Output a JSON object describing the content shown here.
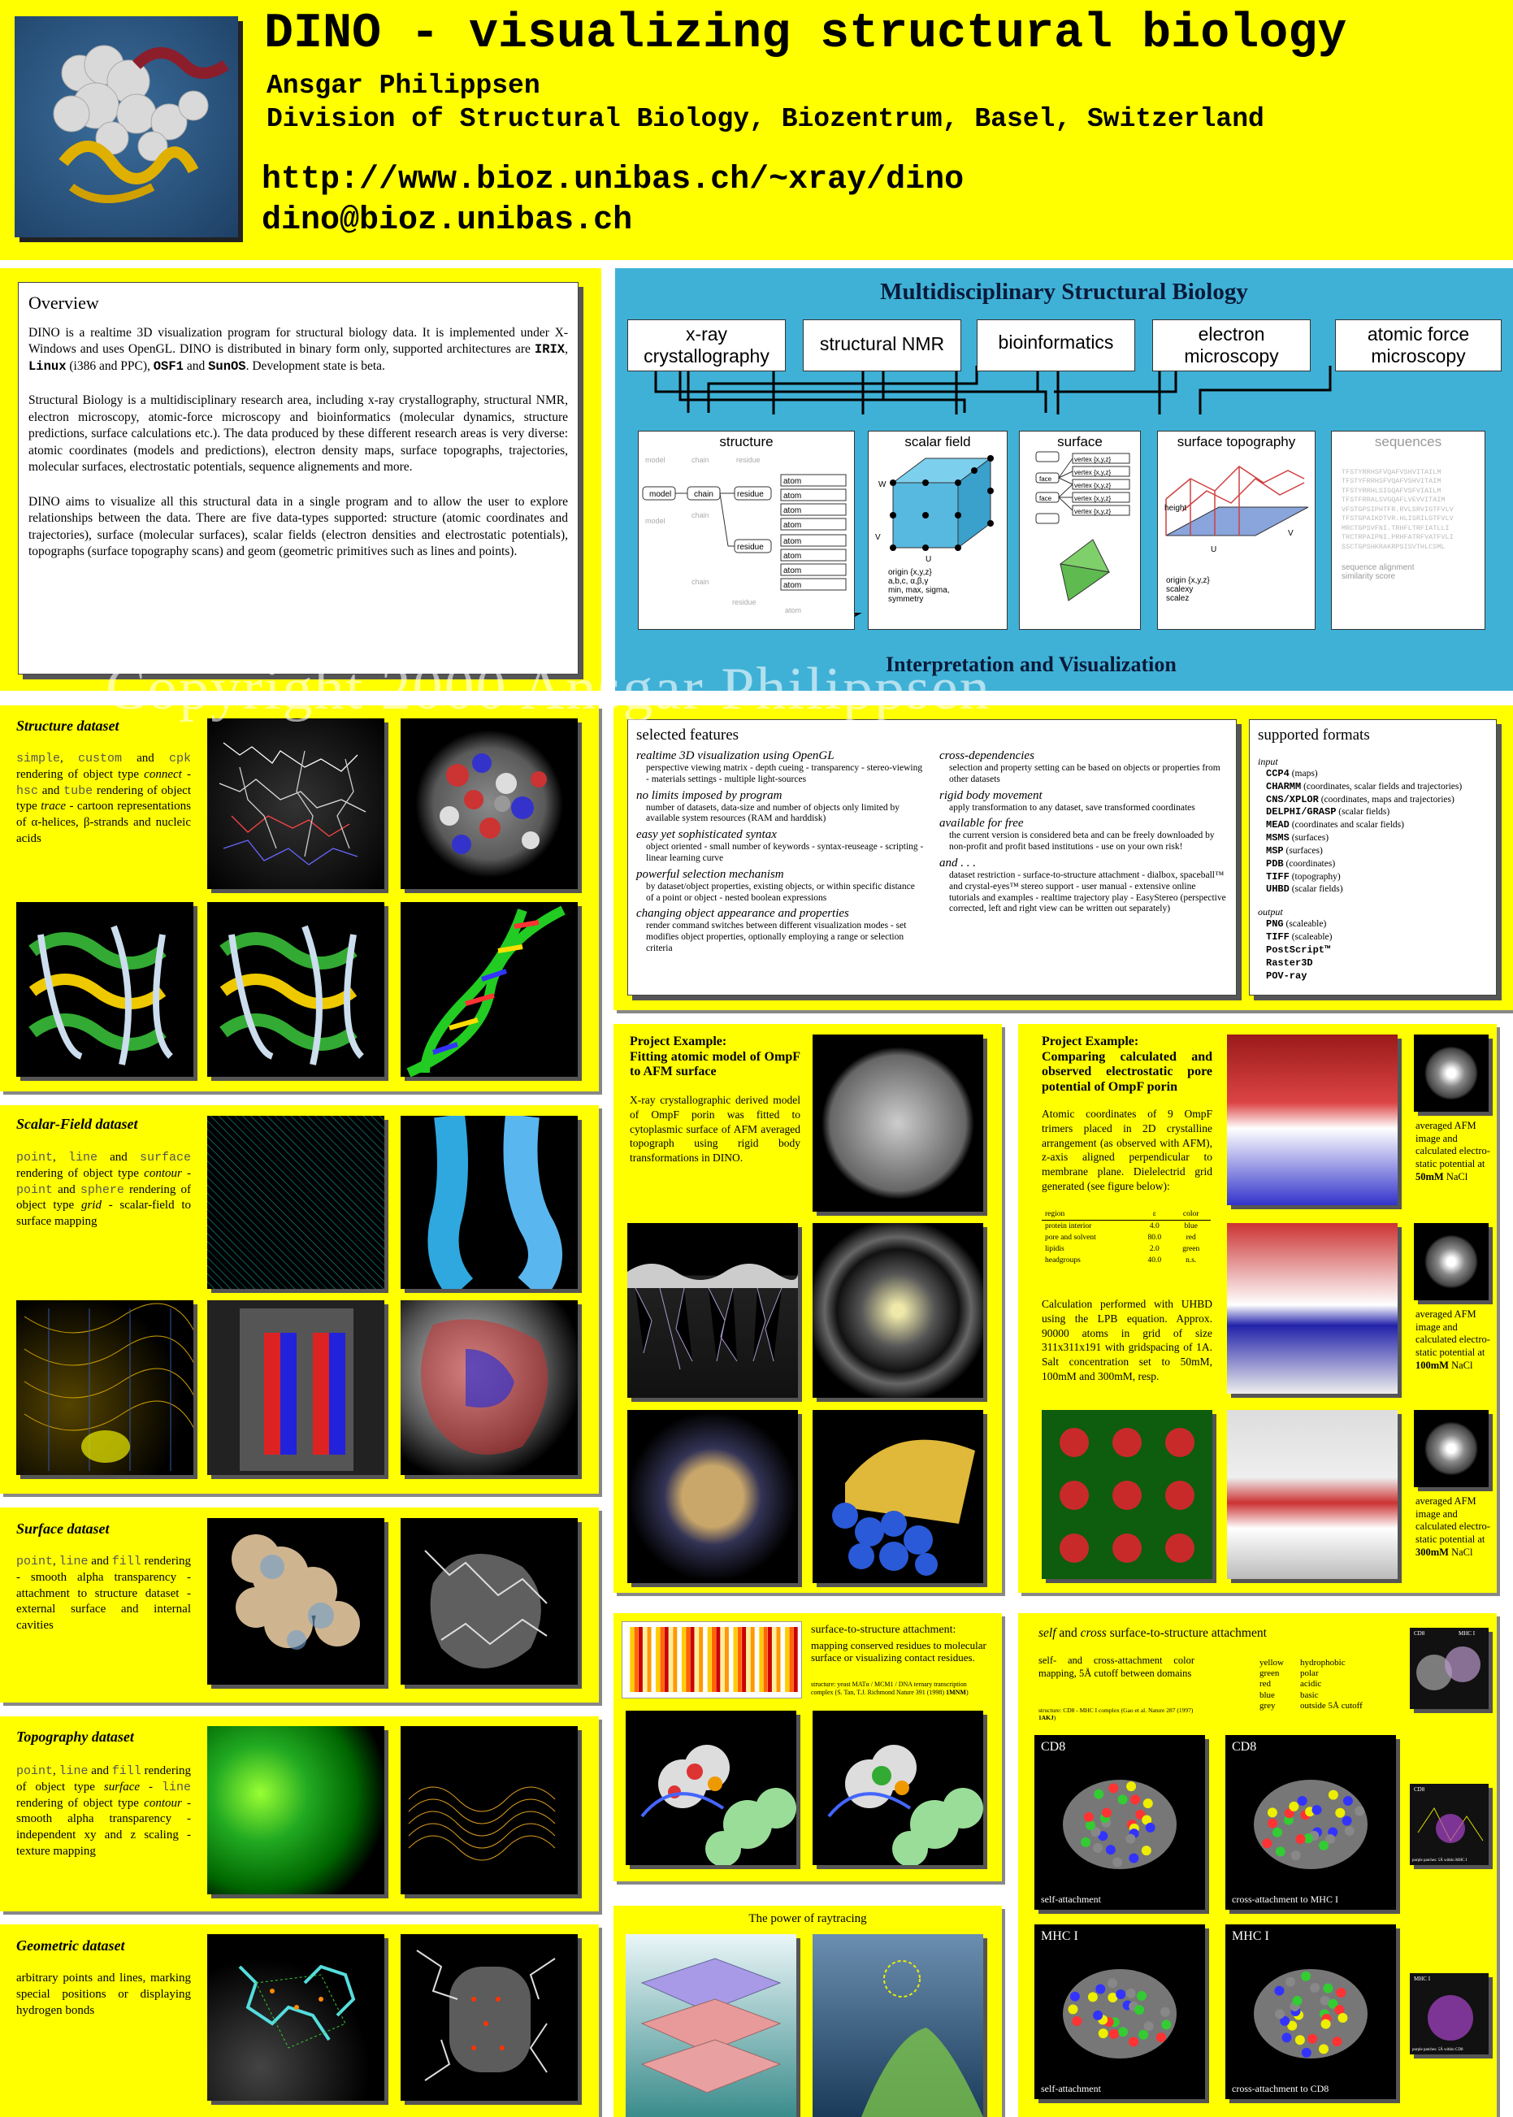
{
  "header": {
    "title": "DINO - visualizing structural biology",
    "author": "Ansgar Philippsen",
    "division": "Division of Structural Biology, Biozentrum, Basel, Switzerland",
    "url": "http://www.bioz.unibas.ch/~xray/dino",
    "email": "dino@bioz.unibas.ch"
  },
  "watermark": "Copyright 2000 Ansgar Philippsen",
  "overview": {
    "title": "Overview",
    "p1a": "DINO is a realtime 3D visualization program for structural biology data. It is implemented under X-Windows and uses OpenGL. DINO is distributed in binary form only, supported architectures are ",
    "arch1": "IRIX",
    "arch2": "Linux",
    "arch2b": " (i386 and PPC), ",
    "arch3": "OSF1",
    "and": " and ",
    "arch4": "SunOS",
    "p1b": ". Development state is beta.",
    "p2": "Structural Biology is a multidisciplinary research area, including x-ray crystallography, structural NMR, electron microscopy, atomic-force microscopy and bioinformatics (molecular dynamics, structure predictions, surface calculations etc.). The data produced by these different research areas is very diverse: atomic coordinates (models and predictions), electron density maps, surface topographs, trajectories, molecular surfaces, electrostatic potentials, sequence alignements and more.",
    "p3": "DINO aims to visualize all this structural data in a single program and to allow the user to explore relationships between the data. There are five data-types supported: structure (atomic coordinates and trajectories), surface (molecular surfaces), scalar fields (electron densities and electrostatic potentials), topographs (surface topography scans) and geom (geometric primitives such as lines and points)."
  },
  "msb": {
    "title": "Multidisciplinary Structural Biology",
    "sources": [
      "x-ray crystallography",
      "structural NMR",
      "bioinformatics",
      "electron microscopy",
      "atomic force microscopy"
    ],
    "types": [
      "structure",
      "scalar field",
      "surface",
      "surface topography",
      "sequences"
    ],
    "footer": "Interpretation and Visualization",
    "structure_labels": {
      "model": "model",
      "chain": "chain",
      "residue": "residue",
      "atom": "atom"
    },
    "scalar_labels": {
      "w": "W",
      "v": "V",
      "u": "U",
      "meta": "origin {x,y,z}\na,b,c, α,β,γ\nmin, max, sigma,\nsymmetry"
    },
    "surface_labels": {
      "face": "face",
      "vertex": "vertex {x,y,z}"
    },
    "topo_labels": {
      "height": "height",
      "u": "U",
      "v": "V",
      "meta": "origin {x,y,z}\nscalexy\nscalez"
    },
    "seq_labels": {
      "meta": "sequence alignment\nsimilarity score"
    }
  },
  "structure": {
    "title": "Structure dataset",
    "k1": "simple",
    "sep1": ", ",
    "k2": "custom",
    "t1": " and ",
    "k3": "cpk",
    "t2": " rendering of object type ",
    "k4": "connect",
    "t3": " - ",
    "k5": "hsc",
    "t4": " and ",
    "k6": "tube",
    "t5": " rendering of object type ",
    "k7": "trace",
    "t6": " - cartoon representations of α-helices, β-strands and nucleic acids"
  },
  "scalar": {
    "title": "Scalar-Field dataset",
    "k1": "point",
    "sep1": ", ",
    "k2": "line",
    "t1": " and ",
    "k3": "surface",
    "t2": " rendering of object type ",
    "k4": "contour",
    "t3": " - ",
    "k5": "point",
    "t4": " and ",
    "k6": "sphere",
    "t5": " rendering of object type ",
    "k7": "grid",
    "t6": " - scalar-field to surface mapping"
  },
  "surface": {
    "title": "Surface dataset",
    "k1": "point",
    "sep1": ", ",
    "k2": "line",
    "t1": " and ",
    "k3": "fill",
    "t2": " rendering - smooth alpha transparency - attachment to structure dataset - external surface and internal cavities"
  },
  "topography": {
    "title": "Topography dataset",
    "k1": "point",
    "sep1": ", ",
    "k2": "line",
    "t1": " and ",
    "k3": "fill",
    "t2": " rendering of object type ",
    "k4": "surface",
    "t3": " - ",
    "k5": "line",
    "t4": " rendering of object type ",
    "k6": "contour",
    "t5": " - smooth alpha transparency - independent xy and z scaling - texture mapping"
  },
  "geometric": {
    "title": "Geometric dataset",
    "text": "arbitrary points and lines, marking special positions or displaying hydrogen bonds"
  },
  "features": {
    "title": "selected features",
    "items": [
      {
        "h": "realtime 3D visualization using OpenGL",
        "t": "perspective viewing matrix - depth cueing - transparency - stereo-viewing - materials settings - multiple light-sources"
      },
      {
        "h": "no limits imposed by program",
        "t": "number of datasets, data-size and number of objects only limited by available system resources (RAM and harddisk)"
      },
      {
        "h": "easy yet sophisticated syntax",
        "t": "object oriented - small number of keywords - syntax-reuseage - scripting - linear learning curve"
      },
      {
        "h": "powerful selection mechanism",
        "t": "by dataset/object properties, existing objects, or within specific distance of a point or object - nested boolean expressions"
      },
      {
        "h": "changing object appearance and properties",
        "t": "render command switches between different visualization modes - set modifies object properties, optionally employing a range or selection criteria"
      },
      {
        "h": "cross-dependencies",
        "t": "selection and property setting can be based on objects or properties from other datasets"
      },
      {
        "h": "rigid body movement",
        "t": "apply transformation to any dataset, save transformed coordinates"
      },
      {
        "h": "available for free",
        "t": "the current version is considered beta and can be freely downloaded by non-profit and profit based institutions - use on your own risk!"
      },
      {
        "h": "and . . .",
        "t": "dataset restriction - surface-to-structure attachment - dialbox, spaceball™ and crystal-eyes™ stereo support - user manual - extensive online tutorials and examples - realtime trajectory play - EasyStereo (perspective corrected, left and right view can be written out separately)"
      }
    ]
  },
  "formats": {
    "title": "supported formats",
    "input_h": "input",
    "input": [
      [
        "CCP4",
        " (maps)"
      ],
      [
        "CHARMM",
        " (coordinates, scalar fields and trajectories)"
      ],
      [
        "CNS/XPLOR",
        " (coordinates, maps and trajectories)"
      ],
      [
        "DELPHI/GRASP",
        " (scalar fields)"
      ],
      [
        "MEAD",
        " (coordinates and scalar fields)"
      ],
      [
        "MSMS",
        " (surfaces)"
      ],
      [
        "MSP",
        " (surfaces)"
      ],
      [
        "PDB",
        " (coordinates)"
      ],
      [
        "TIFF",
        " (topography)"
      ],
      [
        "UHBD",
        " (scalar fields)"
      ]
    ],
    "output_h": "output",
    "output": [
      [
        "PNG",
        " (scaleable)"
      ],
      [
        "TIFF",
        " (scaleable)"
      ],
      [
        "PostScript™",
        ""
      ],
      [
        "Raster3D",
        ""
      ],
      [
        "POV-ray",
        ""
      ]
    ]
  },
  "proj1": {
    "h1": "Project Example:",
    "h2": "Fitting atomic model of OmpF to AFM surface",
    "text": "X-ray crystallographic derived model of OmpF porin was fitted to cytoplasmic surface of AFM averaged topograph using rigid body transformations in DINO."
  },
  "proj2": {
    "h1": "Project Example:",
    "h2": "Comparing calculated and observed electrostatic pore potential of OmpF porin",
    "p1": "Atomic coordinates of 9 OmpF trimers placed in 2D crystalline arrangement (as observed with AFM), z-axis aligned perpendicular to membrane plane. Dielelectrid grid generated (see figure below):",
    "table_head": [
      "region",
      "ε",
      "color"
    ],
    "table": [
      [
        "protein interior",
        "4.0",
        "blue"
      ],
      [
        "pore and solvent",
        "80.0",
        "red"
      ],
      [
        "lipidis",
        "2.0",
        "green"
      ],
      [
        "headgroups",
        "40.0",
        "n.s."
      ]
    ],
    "p2": "Calculation performed with UHBD using the LPB equation. Approx. 90000 atoms in grid of size 311x311x191 with gridspacing of 1A. Salt concentration set to 50mM, 100mM and 300mM, resp.",
    "afm_pre": "averaged AFM image and calculated electro-static potential at ",
    "afm": [
      [
        "50mM",
        " NaCl"
      ],
      [
        "100mM",
        " NaCl"
      ],
      [
        "300mM",
        " NaCl"
      ]
    ]
  },
  "attach": {
    "title": "surface-to-structure attachment:",
    "text": "mapping conserved residues to molecular surface or visualizing contact residues.",
    "ref": "structure: yeast MATα / MCM1 / DNA ternary transcription complex (S. Tan, T.J. Richmond Nature 391 (1998) ",
    "ref_id": "1MNM",
    "ref_end": ")"
  },
  "raytracing": {
    "title": "The power of raytracing"
  },
  "selfcross": {
    "title_a": "self",
    "title_b": " and ",
    "title_c": "cross",
    "title_d": " surface-to-structure attachment",
    "text": "self- and cross-attachment color mapping, 5Å cutoff between domains",
    "ref": "structure: CD8 - MHC I complex (Gao et al. Nature 287 (1997) ",
    "ref_id": "1AKJ",
    "ref_end": ")",
    "legend": [
      [
        "yellow",
        "hydrophobic"
      ],
      [
        "green",
        "polar"
      ],
      [
        "red",
        "acidic"
      ],
      [
        "blue",
        "basic"
      ],
      [
        "grey",
        "outside 5Å cutoff"
      ]
    ],
    "panels": [
      {
        "label": "CD8",
        "caption": "self-attachment"
      },
      {
        "label": "CD8",
        "caption": "cross-attachment to MHC I"
      },
      {
        "label": "MHC I",
        "caption": "self-attachment"
      },
      {
        "label": "MHC I",
        "caption": "cross-attachment to CD8"
      }
    ],
    "thumbs": [
      {
        "a": "CD8",
        "b": "MHC I"
      },
      {
        "a": "CD8",
        "b": "purple patches: 5Å within MHC I"
      },
      {
        "a": "MHC I",
        "b": "purple patches: 5Å within CD8"
      }
    ]
  }
}
